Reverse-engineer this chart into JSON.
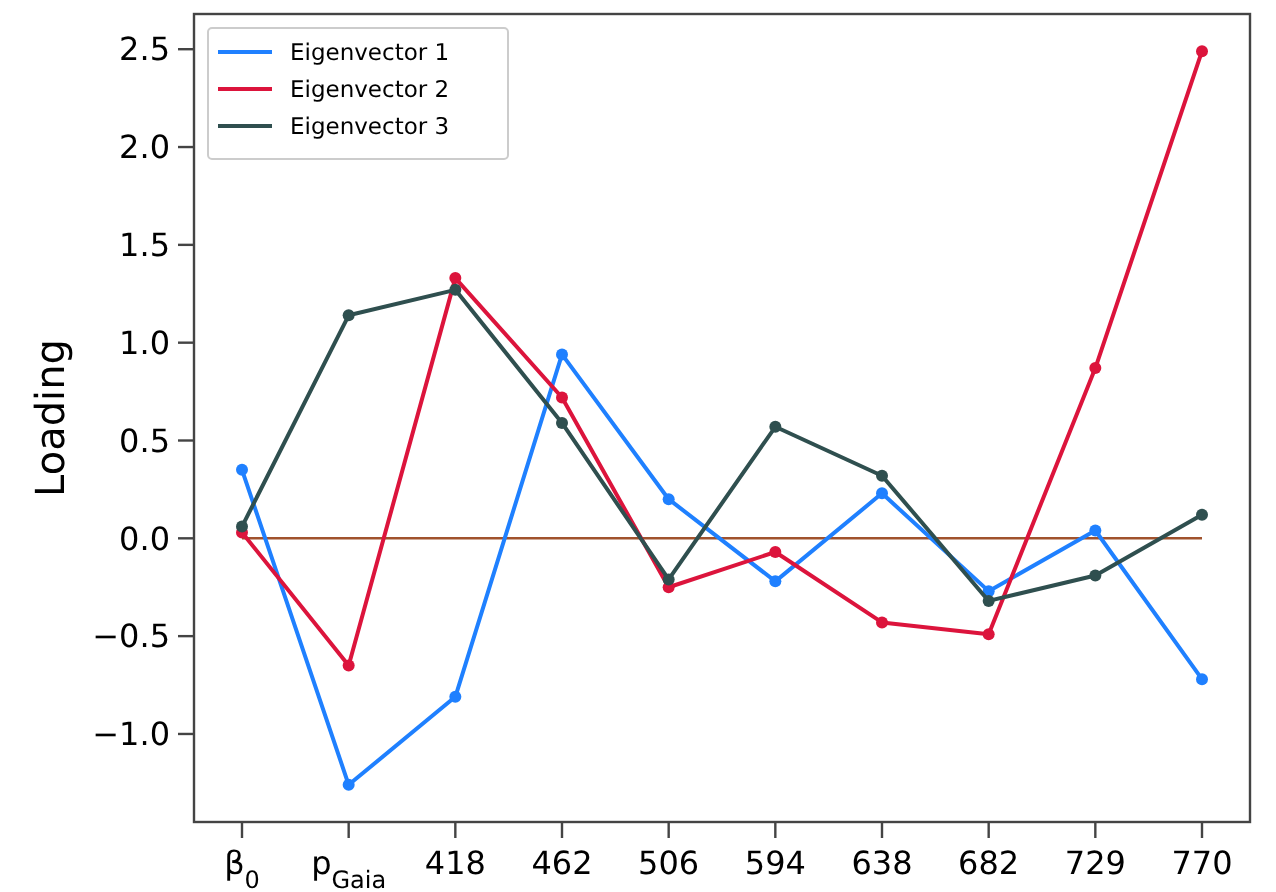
{
  "chart_data": {
    "type": "line",
    "ylabel": "Loading",
    "categories": [
      "β$_{0}$",
      "p$_{Gaia}$",
      "418",
      "462",
      "506",
      "594",
      "638",
      "682",
      "729",
      "770"
    ],
    "series": [
      {
        "name": "Eigenvector 1",
        "color": "#1f80ff",
        "values": [
          0.35,
          -1.26,
          -0.81,
          0.94,
          0.2,
          -0.22,
          0.23,
          -0.27,
          0.04,
          -0.72
        ]
      },
      {
        "name": "Eigenvector 2",
        "color": "#dc143c",
        "values": [
          0.03,
          -0.65,
          1.33,
          0.72,
          -0.25,
          -0.07,
          -0.43,
          -0.49,
          0.87,
          2.49
        ]
      },
      {
        "name": "Eigenvector 3",
        "color": "#2f4f4f",
        "values": [
          0.06,
          1.14,
          1.27,
          0.59,
          -0.21,
          0.57,
          0.32,
          -0.32,
          -0.19,
          0.12
        ]
      }
    ],
    "ylim": [
      -1.45,
      2.68
    ],
    "yticks": [
      {
        "value": -1.0,
        "label": "−1.0"
      },
      {
        "value": -0.5,
        "label": "−0.5"
      },
      {
        "value": 0,
        "label": "0.0"
      },
      {
        "value": 0.5,
        "label": "0.5"
      },
      {
        "value": 1.0,
        "label": "1.0"
      },
      {
        "value": 1.5,
        "label": "1.5"
      },
      {
        "value": 2.0,
        "label": "2.0"
      },
      {
        "value": 2.5,
        "label": "2.5"
      }
    ],
    "ref_lines": [
      {
        "axis": "y",
        "value": 0,
        "color": "#a0522d"
      }
    ],
    "marker": "circle",
    "legend": "top left",
    "grid": false
  }
}
